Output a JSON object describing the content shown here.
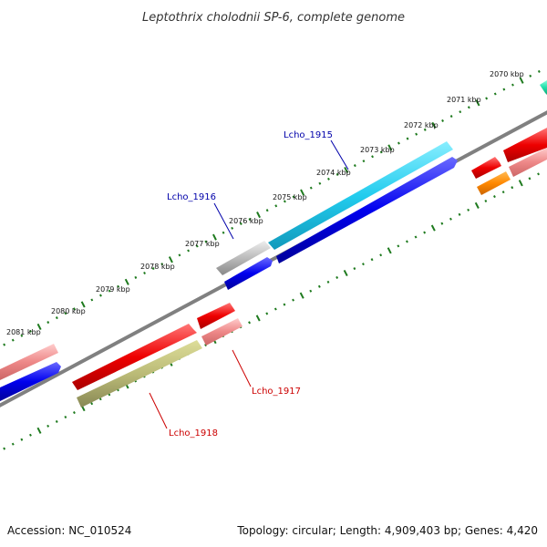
{
  "title": "Leptothrix cholodnii SP-6, complete genome",
  "footer": {
    "accession": "Accession: NC_010524",
    "summary": "Topology: circular; Length: 4,909,403 bp; Genes: 4,420"
  },
  "ticks": [
    "2070 kbp",
    "2071 kbp",
    "2072 kbp",
    "2073 kbp",
    "2074 kbp",
    "2075 kbp",
    "2076 kbp",
    "2077 kbp",
    "2078 kbp",
    "2079 kbp",
    "2080 kbp",
    "2081 kbp"
  ],
  "gene_labels": [
    {
      "text": "Lcho_1915",
      "color": "#0000aa"
    },
    {
      "text": "Lcho_1916",
      "color": "#0000aa"
    },
    {
      "text": "Lcho_1917",
      "color": "#cc0000"
    },
    {
      "text": "Lcho_1918",
      "color": "#cc0000"
    }
  ],
  "colors": {
    "backbone": "#808080",
    "tick": "#1e7a1e",
    "cds_blue": "#0000ee",
    "cds_cyan": "#22ccee",
    "cds_red": "#ee0000",
    "cds_pink": "#ee8888",
    "cds_grey": "#bbbbbb",
    "cds_olive": "#bbbb77",
    "cds_orange": "#ff8800",
    "cds_teal": "#22ddaa"
  }
}
